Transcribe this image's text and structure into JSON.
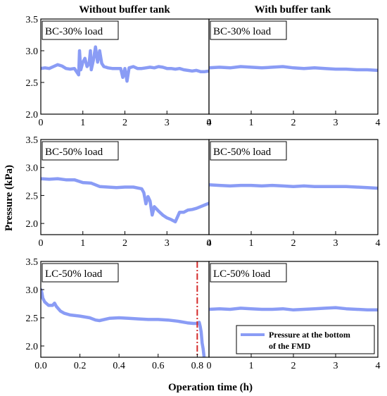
{
  "column_titles": [
    "Without buffer tank",
    "With buffer tank"
  ],
  "ylabel": "Pressure (kPa)",
  "xlabel": "Operation time (h)",
  "legend": {
    "label_line1": "Pressure at the bottom",
    "label_line2": "of the FMD"
  },
  "colors": {
    "series": "#8a9cf5",
    "marker": "#d42a2a",
    "axis": "#000000"
  },
  "chart_data": [
    {
      "type": "line",
      "panel": "top-left",
      "label": "BC-30% load",
      "xlim": [
        0,
        4
      ],
      "ylim": [
        2.0,
        3.5
      ],
      "xticks": [
        "0",
        "1",
        "2",
        "3",
        "4"
      ],
      "yticks": [
        "2.0",
        "2.5",
        "3.0",
        "3.5"
      ],
      "series": [
        {
          "x": [
            0,
            0.1,
            0.2,
            0.3,
            0.4,
            0.5,
            0.6,
            0.7,
            0.8,
            0.9,
            0.92,
            0.95,
            1.0,
            1.05,
            1.1,
            1.15,
            1.18,
            1.2,
            1.25,
            1.3,
            1.35,
            1.4,
            1.45,
            1.5,
            1.55,
            1.6,
            1.7,
            1.8,
            1.9,
            1.95,
            2.0,
            2.05,
            2.1,
            2.2,
            2.3,
            2.4,
            2.5,
            2.6,
            2.7,
            2.8,
            2.9,
            3.0,
            3.1,
            3.2,
            3.3,
            3.4,
            3.5,
            3.6,
            3.7,
            3.8,
            3.9,
            4.0
          ],
          "y": [
            2.72,
            2.73,
            2.72,
            2.75,
            2.78,
            2.76,
            2.72,
            2.71,
            2.72,
            2.62,
            3.0,
            2.7,
            2.82,
            2.88,
            2.75,
            2.8,
            3.0,
            2.7,
            2.85,
            3.06,
            2.82,
            3.0,
            2.8,
            2.75,
            2.74,
            2.73,
            2.72,
            2.72,
            2.72,
            2.58,
            2.72,
            2.52,
            2.73,
            2.75,
            2.72,
            2.72,
            2.73,
            2.74,
            2.73,
            2.75,
            2.74,
            2.72,
            2.72,
            2.71,
            2.72,
            2.7,
            2.69,
            2.68,
            2.69,
            2.67,
            2.67,
            2.68
          ]
        }
      ]
    },
    {
      "type": "line",
      "panel": "top-right",
      "label": "BC-30% load",
      "xlim": [
        0,
        4
      ],
      "ylim": [
        2.0,
        3.5
      ],
      "xticks": [
        "0",
        "1",
        "2",
        "3",
        "4"
      ],
      "yticks": [],
      "series": [
        {
          "x": [
            0,
            0.25,
            0.5,
            0.75,
            1.0,
            1.25,
            1.5,
            1.75,
            2.0,
            2.25,
            2.5,
            2.75,
            3.0,
            3.25,
            3.5,
            3.75,
            4.0
          ],
          "y": [
            2.73,
            2.74,
            2.73,
            2.75,
            2.74,
            2.73,
            2.74,
            2.75,
            2.73,
            2.72,
            2.73,
            2.72,
            2.71,
            2.71,
            2.7,
            2.7,
            2.69
          ]
        }
      ]
    },
    {
      "type": "line",
      "panel": "middle-left",
      "label": "BC-50% load",
      "xlim": [
        0,
        4
      ],
      "ylim": [
        1.8,
        3.5
      ],
      "xticks": [
        "0",
        "1",
        "2",
        "3",
        "4"
      ],
      "yticks": [
        "2.0",
        "2.5",
        "3.0",
        "3.5"
      ],
      "series": [
        {
          "x": [
            0,
            0.2,
            0.4,
            0.6,
            0.8,
            1.0,
            1.2,
            1.4,
            1.6,
            1.8,
            2.0,
            2.2,
            2.4,
            2.45,
            2.5,
            2.55,
            2.6,
            2.65,
            2.7,
            2.8,
            2.9,
            3.0,
            3.1,
            3.2,
            3.3,
            3.4,
            3.5,
            3.6,
            3.7,
            3.8,
            3.9,
            4.0
          ],
          "y": [
            2.8,
            2.79,
            2.8,
            2.78,
            2.78,
            2.73,
            2.72,
            2.66,
            2.65,
            2.64,
            2.65,
            2.65,
            2.62,
            2.55,
            2.35,
            2.48,
            2.4,
            2.15,
            2.3,
            2.22,
            2.15,
            2.1,
            2.07,
            2.03,
            2.2,
            2.2,
            2.24,
            2.25,
            2.27,
            2.3,
            2.33,
            2.36
          ]
        }
      ]
    },
    {
      "type": "line",
      "panel": "middle-right",
      "label": "BC-50% load",
      "xlim": [
        0,
        4
      ],
      "ylim": [
        1.8,
        3.5
      ],
      "xticks": [
        "0",
        "1",
        "2",
        "3",
        "4"
      ],
      "yticks": [],
      "series": [
        {
          "x": [
            0,
            0.25,
            0.5,
            0.75,
            1.0,
            1.25,
            1.5,
            1.75,
            2.0,
            2.25,
            2.5,
            2.75,
            3.0,
            3.25,
            3.5,
            3.75,
            4.0
          ],
          "y": [
            2.69,
            2.68,
            2.67,
            2.68,
            2.68,
            2.67,
            2.68,
            2.67,
            2.66,
            2.67,
            2.66,
            2.66,
            2.66,
            2.66,
            2.65,
            2.64,
            2.63
          ]
        }
      ]
    },
    {
      "type": "line",
      "panel": "bottom-left",
      "label": "LC-50% load",
      "xlim": [
        0,
        0.86
      ],
      "ylim": [
        1.8,
        3.5
      ],
      "xticks": [
        "0.0",
        "0.2",
        "0.4",
        "0.6",
        "0.8"
      ],
      "yticks": [
        "2.0",
        "2.5",
        "3.0",
        "3.5"
      ],
      "vline_x": 0.8,
      "series": [
        {
          "x": [
            0,
            0.005,
            0.01,
            0.02,
            0.04,
            0.06,
            0.07,
            0.08,
            0.1,
            0.12,
            0.15,
            0.2,
            0.25,
            0.28,
            0.3,
            0.35,
            0.4,
            0.45,
            0.5,
            0.55,
            0.6,
            0.65,
            0.7,
            0.75,
            0.78,
            0.8,
            0.81,
            0.815,
            0.82,
            0.825,
            0.83,
            0.835
          ],
          "y": [
            3.0,
            2.95,
            2.85,
            2.78,
            2.72,
            2.72,
            2.76,
            2.7,
            2.62,
            2.58,
            2.55,
            2.53,
            2.5,
            2.46,
            2.45,
            2.49,
            2.5,
            2.49,
            2.48,
            2.47,
            2.47,
            2.46,
            2.44,
            2.41,
            2.4,
            2.4,
            2.42,
            2.35,
            2.25,
            2.05,
            1.95,
            1.8
          ]
        }
      ]
    },
    {
      "type": "line",
      "panel": "bottom-right",
      "label": "LC-50% load",
      "xlim": [
        0,
        4
      ],
      "ylim": [
        1.8,
        3.5
      ],
      "xticks": [
        "0",
        "1",
        "2",
        "3",
        "4"
      ],
      "yticks": [],
      "series": [
        {
          "x": [
            0,
            0.25,
            0.5,
            0.75,
            1.0,
            1.25,
            1.5,
            1.75,
            2.0,
            2.25,
            2.5,
            2.75,
            3.0,
            3.25,
            3.5,
            3.75,
            4.0
          ],
          "y": [
            2.65,
            2.66,
            2.65,
            2.67,
            2.66,
            2.65,
            2.65,
            2.66,
            2.64,
            2.65,
            2.66,
            2.67,
            2.68,
            2.66,
            2.65,
            2.64,
            2.64
          ]
        }
      ]
    }
  ]
}
